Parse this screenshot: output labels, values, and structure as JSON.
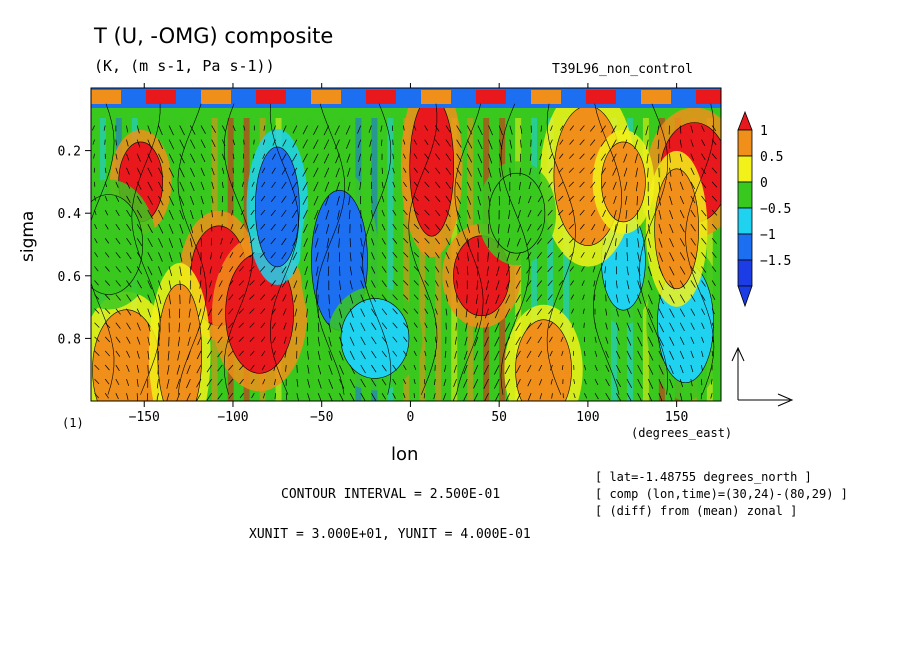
{
  "chart_data": {
    "type": "heatmap",
    "title": "T (U, -OMG) composite",
    "units": "(K, (m s-1, Pa s-1))",
    "run_label": "T39L96_non_control",
    "xlabel": "lon",
    "x_unit_label": "(degrees_east)",
    "ylabel": "sigma",
    "panel_index": "(1)",
    "xlim": [
      -180,
      175
    ],
    "ylim": [
      1.0,
      0.0
    ],
    "x_ticks": [
      -150,
      -100,
      -50,
      0,
      50,
      100,
      150
    ],
    "x_tick_labels": [
      "−150",
      "−100",
      "−50",
      "0",
      "50",
      "100",
      "150"
    ],
    "y_ticks": [
      0.2,
      0.4,
      0.6,
      0.8
    ],
    "y_tick_labels": [
      "0.2",
      "0.4",
      "0.6",
      "0.8"
    ],
    "colorbar": {
      "labels": [
        "1",
        "0.5",
        "0",
        "−0.5",
        "−1",
        "−1.5"
      ],
      "colors": [
        "#e8181c",
        "#f08f1a",
        "#f2f21a",
        "#39c81e",
        "#1fd2f0",
        "#1c6ff0",
        "#1c3ce6"
      ]
    },
    "contour_interval": "CONTOUR INTERVAL = 2.500E-01",
    "vector_units": "XUNIT = 3.000E+01, YUNIT = 4.000E-01",
    "info_lines": [
      "[ lat=-1.48755 degrees_north ]",
      "[ comp (lon,time)=(30,24)-(80,29) ]",
      "[ (diff) from (mean) zonal ]"
    ],
    "features": [
      {
        "lon": -152,
        "sigma": 0.3,
        "value": 1.0
      },
      {
        "lon": -108,
        "sigma": 0.6,
        "value": 1.0
      },
      {
        "lon": -85,
        "sigma": 0.72,
        "value": 1.0
      },
      {
        "lon": 12,
        "sigma": 0.25,
        "value": 1.0
      },
      {
        "lon": 40,
        "sigma": 0.6,
        "value": 1.0
      },
      {
        "lon": 160,
        "sigma": 0.27,
        "value": 0.75
      },
      {
        "lon": -75,
        "sigma": 0.38,
        "value": -1.5
      },
      {
        "lon": -40,
        "sigma": 0.55,
        "value": -1.25
      },
      {
        "lon": -20,
        "sigma": 0.8,
        "value": -1.0
      },
      {
        "lon": 120,
        "sigma": 0.55,
        "value": -1.0
      },
      {
        "lon": 155,
        "sigma": 0.75,
        "value": -1.0
      },
      {
        "lon": 100,
        "sigma": 0.28,
        "value": 0.5
      },
      {
        "lon": 120,
        "sigma": 0.3,
        "value": 0.5
      },
      {
        "lon": 75,
        "sigma": 0.9,
        "value": 0.5
      },
      {
        "lon": -160,
        "sigma": 0.9,
        "value": 0.5
      },
      {
        "lon": -130,
        "sigma": 0.85,
        "value": 0.6
      },
      {
        "lon": 60,
        "sigma": 0.4,
        "value": -0.5
      },
      {
        "lon": -170,
        "sigma": 0.5,
        "value": -0.5
      },
      {
        "lon": 150,
        "sigma": 0.45,
        "value": 0.25
      }
    ]
  }
}
